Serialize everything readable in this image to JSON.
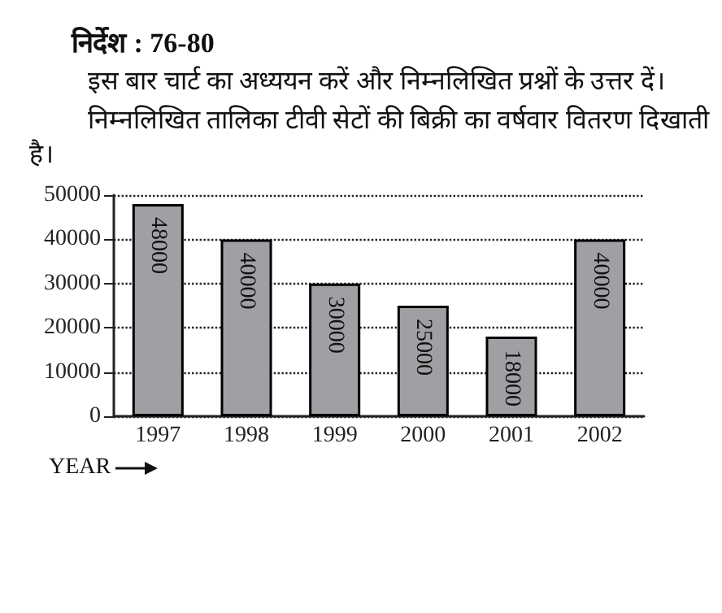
{
  "chart_data": {
    "type": "bar",
    "title": "निर्देश : 76-80",
    "subtitle": "इस बार चार्ट का अध्ययन करें और निम्नलिखित प्रश्नों के उत्तर दें।\nनिम्नलिखित तालिका टीवी सेटों की बिक्री का वर्षवार वितरण दिखाती है।",
    "xlabel": "YEAR",
    "categories": [
      "1997",
      "1998",
      "1999",
      "2000",
      "2001",
      "2002"
    ],
    "values": [
      48000,
      40000,
      30000,
      25000,
      18000,
      40000
    ],
    "color": "#a0a0a4",
    "ylim": [
      0,
      50000
    ],
    "yticks": [
      0,
      10000,
      20000,
      30000,
      40000,
      50000
    ],
    "grid": "y",
    "data_labels": true
  }
}
